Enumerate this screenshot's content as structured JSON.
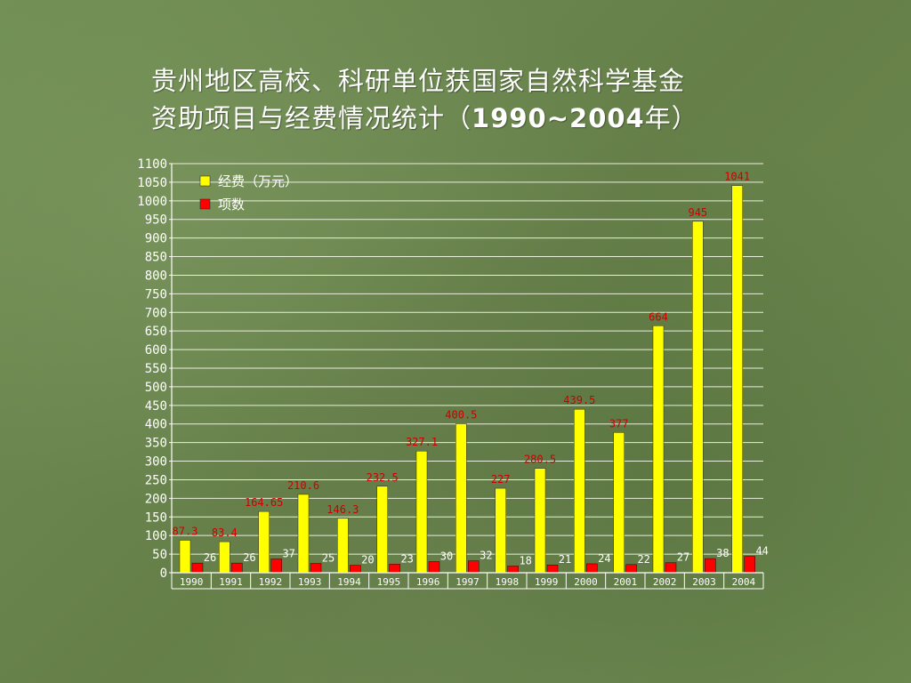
{
  "slide": {
    "title_line1": "贵州地区高校、科研单位获国家自然科学基金",
    "title_line2_pre": "资助项目与经费情况统计（",
    "title_line2_years": "1990~2004",
    "title_line2_post": "年）"
  },
  "chart_data": {
    "type": "bar",
    "categories": [
      "1990",
      "1991",
      "1992",
      "1993",
      "1994",
      "1995",
      "1996",
      "1997",
      "1998",
      "1999",
      "2000",
      "2001",
      "2002",
      "2003",
      "2004"
    ],
    "series": [
      {
        "name": "经费（万元）",
        "color": "#ffff00",
        "label_color": "#cc0000",
        "values": [
          87.3,
          83.4,
          164.65,
          210.6,
          146.3,
          232.5,
          327.1,
          400.5,
          227,
          280.5,
          439.5,
          377,
          664,
          945,
          1041
        ],
        "labels": [
          "87.3",
          "83.4",
          "164.65",
          "210.6",
          "146.3",
          "232.5",
          "327.1",
          "400.5",
          "227",
          "280.5",
          "439.5",
          "377",
          "664",
          "945",
          "1041"
        ]
      },
      {
        "name": "项数",
        "color": "#ff0000",
        "label_color": "#ffffff",
        "values": [
          26,
          26,
          37,
          25,
          20,
          23,
          30,
          32,
          18,
          21,
          24,
          22,
          27,
          38,
          44
        ],
        "labels": [
          "26",
          "26",
          "37",
          "25",
          "20",
          "23",
          "30",
          "32",
          "18",
          "21",
          "24",
          "22",
          "27",
          "38",
          "44"
        ]
      }
    ],
    "yticks": [
      "0",
      "50",
      "100",
      "150",
      "200",
      "250",
      "300",
      "350",
      "400",
      "450",
      "500",
      "550",
      "600",
      "650",
      "700",
      "750",
      "800",
      "850",
      "900",
      "950",
      "1000",
      "1050",
      "1100"
    ],
    "ylim": [
      0,
      1100
    ],
    "grid": true,
    "legend": "top-left",
    "plot_background": "#6b8a4e",
    "axis_color": "#ffffff"
  }
}
